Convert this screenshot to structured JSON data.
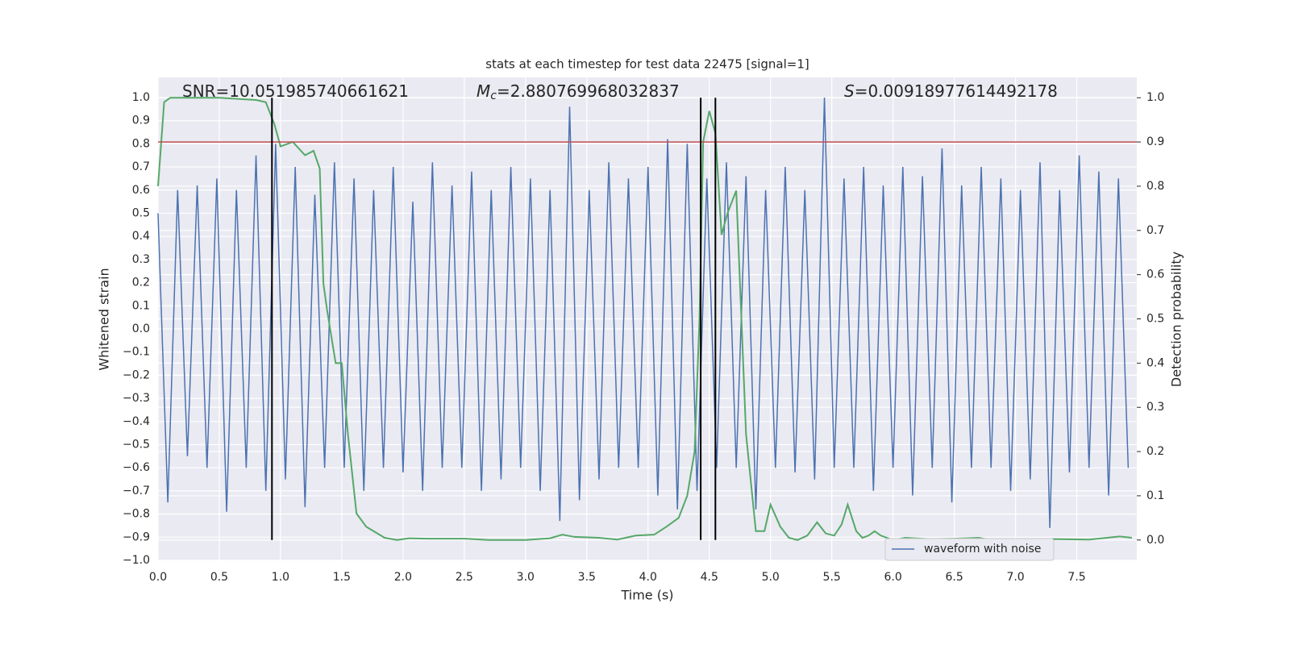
{
  "chart_data": {
    "type": "line",
    "title": "stats at each timestep for test data 22475 [signal=1]",
    "xlabel": "Time (s)",
    "ylabel": "Whitened strain",
    "y2label": "Detection probability",
    "xlim": [
      0,
      7.99
    ],
    "ylim": [
      -1.0,
      1.087
    ],
    "y2lim": [
      -0.046,
      1.046
    ],
    "grid": true,
    "legend": "lower right",
    "xticks": [
      {
        "value": 0,
        "label": "0.0"
      },
      {
        "value": 0.5,
        "label": "0.5"
      },
      {
        "value": 1,
        "label": "1.0"
      },
      {
        "value": 1.5,
        "label": "1.5"
      },
      {
        "value": 2,
        "label": "2.0"
      },
      {
        "value": 2.5,
        "label": "2.5"
      },
      {
        "value": 3,
        "label": "3.0"
      },
      {
        "value": 3.5,
        "label": "3.5"
      },
      {
        "value": 4,
        "label": "4.0"
      },
      {
        "value": 4.5,
        "label": "4.5"
      },
      {
        "value": 5,
        "label": "5.0"
      },
      {
        "value": 5.5,
        "label": "5.5"
      },
      {
        "value": 6,
        "label": "6.0"
      },
      {
        "value": 6.5,
        "label": "6.5"
      },
      {
        "value": 7,
        "label": "7.0"
      },
      {
        "value": 7.5,
        "label": "7.5"
      }
    ],
    "yticks": [
      {
        "value": -1.0,
        "label": "−1.0"
      },
      {
        "value": -0.9,
        "label": "−0.9"
      },
      {
        "value": -0.8,
        "label": "−0.8"
      },
      {
        "value": -0.7,
        "label": "−0.7"
      },
      {
        "value": -0.6,
        "label": "−0.6"
      },
      {
        "value": -0.5,
        "label": "−0.5"
      },
      {
        "value": -0.4,
        "label": "−0.4"
      },
      {
        "value": -0.3,
        "label": "−0.3"
      },
      {
        "value": -0.2,
        "label": "−0.2"
      },
      {
        "value": -0.1,
        "label": "−0.1"
      },
      {
        "value": 0,
        "label": "0.0"
      },
      {
        "value": 0.1,
        "label": "0.1"
      },
      {
        "value": 0.2,
        "label": "0.2"
      },
      {
        "value": 0.3,
        "label": "0.3"
      },
      {
        "value": 0.4,
        "label": "0.4"
      },
      {
        "value": 0.5,
        "label": "0.5"
      },
      {
        "value": 0.6,
        "label": "0.6"
      },
      {
        "value": 0.7,
        "label": "0.7"
      },
      {
        "value": 0.8,
        "label": "0.8"
      },
      {
        "value": 0.9,
        "label": "0.9"
      },
      {
        "value": 1.0,
        "label": "1.0"
      }
    ],
    "y2ticks": [
      {
        "value": 0,
        "label": "0.0"
      },
      {
        "value": 0.1,
        "label": "0.1"
      },
      {
        "value": 0.2,
        "label": "0.2"
      },
      {
        "value": 0.3,
        "label": "0.3"
      },
      {
        "value": 0.4,
        "label": "0.4"
      },
      {
        "value": 0.5,
        "label": "0.5"
      },
      {
        "value": 0.6,
        "label": "0.6"
      },
      {
        "value": 0.7,
        "label": "0.7"
      },
      {
        "value": 0.8,
        "label": "0.8"
      },
      {
        "value": 0.9,
        "label": "0.9"
      },
      {
        "value": 1.0,
        "label": "1.0"
      }
    ],
    "annotations": [
      {
        "text": "SNR=10.051985740661621"
      },
      {
        "symbol": "M",
        "subscript": "c",
        "text": "=2.880769968032837"
      },
      {
        "symbol": "S",
        "text": "=0.00918977614492178"
      }
    ],
    "series": [
      {
        "name": "waveform with noise",
        "color": "#4c72b0",
        "x": [
          0,
          0.08,
          0.16,
          0.24,
          0.32,
          0.4,
          0.48,
          0.56,
          0.64,
          0.72,
          0.8,
          0.88,
          0.96,
          1.04,
          1.12,
          1.2,
          1.28,
          1.36,
          1.44,
          1.52,
          1.6,
          1.68,
          1.76,
          1.84,
          1.92,
          2,
          2.08,
          2.16,
          2.24,
          2.32,
          2.4,
          2.48,
          2.56,
          2.64,
          2.72,
          2.8,
          2.88,
          2.96,
          3.04,
          3.12,
          3.2,
          3.28,
          3.36,
          3.44,
          3.52,
          3.6,
          3.68,
          3.76,
          3.84,
          3.92,
          4,
          4.08,
          4.16,
          4.24,
          4.32,
          4.4,
          4.48,
          4.56,
          4.64,
          4.72,
          4.8,
          4.88,
          4.96,
          5.04,
          5.12,
          5.2,
          5.28,
          5.36,
          5.44,
          5.52,
          5.6,
          5.68,
          5.76,
          5.84,
          5.92,
          6,
          6.08,
          6.16,
          6.24,
          6.32,
          6.4,
          6.48,
          6.56,
          6.64,
          6.72,
          6.8,
          6.88,
          6.96,
          7.04,
          7.12,
          7.2,
          7.28,
          7.36,
          7.44,
          7.52,
          7.6,
          7.68,
          7.76,
          7.84,
          7.92
        ],
        "values": [
          0.5,
          -0.75,
          0.6,
          -0.55,
          0.62,
          -0.6,
          0.65,
          -0.79,
          0.6,
          -0.6,
          0.75,
          -0.7,
          0.8,
          -0.65,
          0.7,
          -0.77,
          0.58,
          -0.6,
          0.72,
          -0.6,
          0.65,
          -0.7,
          0.6,
          -0.6,
          0.7,
          -0.62,
          0.55,
          -0.7,
          0.72,
          -0.6,
          0.62,
          -0.6,
          0.68,
          -0.7,
          0.6,
          -0.65,
          0.7,
          -0.6,
          0.65,
          -0.7,
          0.6,
          -0.83,
          0.96,
          -0.74,
          0.6,
          -0.65,
          0.72,
          -0.6,
          0.65,
          -0.6,
          0.7,
          -0.72,
          0.82,
          -0.78,
          0.8,
          -0.7,
          0.65,
          -0.6,
          0.72,
          -0.6,
          0.66,
          -0.78,
          0.6,
          -0.6,
          0.7,
          -0.62,
          0.6,
          -0.65,
          1.0,
          -0.6,
          0.65,
          -0.6,
          0.7,
          -0.7,
          0.62,
          -0.6,
          0.7,
          -0.72,
          0.66,
          -0.6,
          0.78,
          -0.75,
          0.62,
          -0.6,
          0.7,
          -0.6,
          0.65,
          -0.7,
          0.6,
          -0.65,
          0.72,
          -0.86,
          0.6,
          -0.62,
          0.75,
          -0.6,
          0.68,
          -0.72,
          0.65,
          -0.6
        ]
      },
      {
        "color": "#55a868",
        "axis": "y2",
        "x": [
          0,
          0.05,
          0.1,
          0.5,
          0.8,
          0.88,
          0.95,
          1,
          1.1,
          1.2,
          1.27,
          1.32,
          1.35,
          1.38,
          1.45,
          1.5,
          1.55,
          1.62,
          1.7,
          1.85,
          1.95,
          2.05,
          2.2,
          2.5,
          2.7,
          3,
          3.2,
          3.3,
          3.4,
          3.6,
          3.75,
          3.9,
          4.05,
          4.15,
          4.25,
          4.32,
          4.38,
          4.42,
          4.45,
          4.5,
          4.55,
          4.6,
          4.65,
          4.72,
          4.8,
          4.88,
          4.95,
          5,
          5.08,
          5.15,
          5.22,
          5.3,
          5.38,
          5.45,
          5.52,
          5.58,
          5.63,
          5.7,
          5.75,
          5.8,
          5.85,
          5.9,
          6,
          6.1,
          6.3,
          6.5,
          6.7,
          6.8,
          7,
          7.3,
          7.6,
          7.85,
          7.95
        ],
        "values": [
          0.8,
          0.99,
          1.0,
          1.0,
          0.995,
          0.99,
          0.94,
          0.89,
          0.9,
          0.87,
          0.88,
          0.84,
          0.58,
          0.52,
          0.4,
          0.4,
          0.24,
          0.06,
          0.03,
          0.005,
          0.0,
          0.004,
          0.003,
          0.003,
          0.0,
          0.0,
          0.004,
          0.012,
          0.007,
          0.005,
          0.001,
          0.01,
          0.012,
          0.03,
          0.05,
          0.1,
          0.2,
          0.5,
          0.9,
          0.97,
          0.92,
          0.69,
          0.74,
          0.79,
          0.24,
          0.02,
          0.02,
          0.08,
          0.03,
          0.005,
          0.0,
          0.01,
          0.04,
          0.015,
          0.01,
          0.035,
          0.08,
          0.02,
          0.005,
          0.01,
          0.02,
          0.01,
          0.0,
          0.005,
          0.002,
          0.003,
          0.005,
          0.0,
          0.0,
          0.002,
          0.001,
          0.008,
          0.005
        ]
      }
    ],
    "threshold": {
      "y": 0.9,
      "axis": "y2",
      "color": "#c44e52"
    },
    "vlines": {
      "x": [
        0.93,
        4.43,
        4.55
      ],
      "ymin": 0,
      "ymax": 1,
      "axis": "y2",
      "color": "#000000"
    }
  }
}
